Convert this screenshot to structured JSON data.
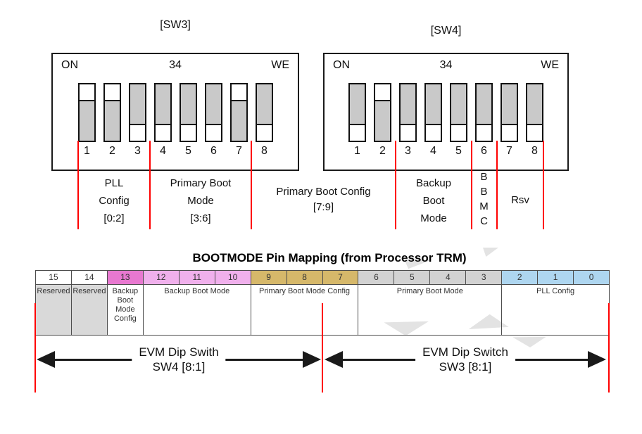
{
  "sw3": {
    "title": "[SW3]",
    "corner_left": "ON",
    "corner_center": "34",
    "corner_right": "WE",
    "switches": [
      {
        "num": "1",
        "state": "off"
      },
      {
        "num": "2",
        "state": "off"
      },
      {
        "num": "3",
        "state": "on"
      },
      {
        "num": "4",
        "state": "on"
      },
      {
        "num": "5",
        "state": "on"
      },
      {
        "num": "6",
        "state": "on"
      },
      {
        "num": "7",
        "state": "off"
      },
      {
        "num": "8",
        "state": "on"
      }
    ]
  },
  "sw4": {
    "title": "[SW4]",
    "corner_left": "ON",
    "corner_center": "34",
    "corner_right": "WE",
    "switches": [
      {
        "num": "1",
        "state": "on"
      },
      {
        "num": "2",
        "state": "off"
      },
      {
        "num": "3",
        "state": "on"
      },
      {
        "num": "4",
        "state": "on"
      },
      {
        "num": "5",
        "state": "on"
      },
      {
        "num": "6",
        "state": "on"
      },
      {
        "num": "7",
        "state": "on"
      },
      {
        "num": "8",
        "state": "on"
      }
    ]
  },
  "group_labels": {
    "pll_config": [
      "PLL",
      "Config",
      "[0:2]"
    ],
    "primary_boot_mode": [
      "Primary Boot",
      "Mode",
      "[3:6]"
    ],
    "primary_boot_config": [
      "Primary Boot Config",
      "[7:9]"
    ],
    "backup_boot_mode": [
      "Backup",
      "Boot",
      "Mode"
    ],
    "bbmc": [
      "B",
      "B",
      "M",
      "C"
    ],
    "rsv": [
      "Rsv"
    ]
  },
  "table": {
    "title": "BOOTMODE Pin Mapping (from Processor TRM)",
    "bits": [
      {
        "bit": "15",
        "bg": "#FFFFFF"
      },
      {
        "bit": "14",
        "bg": "#FFFFFF"
      },
      {
        "bit": "13",
        "bg": "#E878D0"
      },
      {
        "bit": "12",
        "bg": "#F0B0EC"
      },
      {
        "bit": "11",
        "bg": "#F0B0EC"
      },
      {
        "bit": "10",
        "bg": "#F0B0EC"
      },
      {
        "bit": "9",
        "bg": "#D6B86A"
      },
      {
        "bit": "8",
        "bg": "#D6B86A"
      },
      {
        "bit": "7",
        "bg": "#D6B86A"
      },
      {
        "bit": "6",
        "bg": "#D2D2D2"
      },
      {
        "bit": "5",
        "bg": "#D2D2D2"
      },
      {
        "bit": "4",
        "bg": "#D2D2D2"
      },
      {
        "bit": "3",
        "bg": "#D2D2D2"
      },
      {
        "bit": "2",
        "bg": "#AED6F0"
      },
      {
        "bit": "1",
        "bg": "#AED6F0"
      },
      {
        "bit": "0",
        "bg": "#AED6F0"
      }
    ],
    "groups": [
      {
        "label": "Reserved",
        "span": 1,
        "bg": "#D9D9D9"
      },
      {
        "label": "Reserved",
        "span": 1,
        "bg": "#D9D9D9"
      },
      {
        "label": "Backup Boot Mode Config",
        "span": 1,
        "bg": "#FFFFFF"
      },
      {
        "label": "Backup Boot Mode",
        "span": 3,
        "bg": "#FFFFFF"
      },
      {
        "label": "Primary Boot Mode Config",
        "span": 3,
        "bg": "#FFFFFF"
      },
      {
        "label": "Primary Boot Mode",
        "span": 4,
        "bg": "#FFFFFF"
      },
      {
        "label": "PLL Config",
        "span": 3,
        "bg": "#FFFFFF"
      }
    ]
  },
  "arrows": {
    "sw4": {
      "line1": "EVM Dip Swith",
      "line2": "SW4 [8:1]"
    },
    "sw3": {
      "line1": "EVM Dip Switch",
      "line2": "SW3 [8:1]"
    }
  },
  "colors": {
    "divider_line": "#FF0000",
    "switch_slider": "#C9C9C9",
    "reserved_cell": "#D9D9D9"
  }
}
